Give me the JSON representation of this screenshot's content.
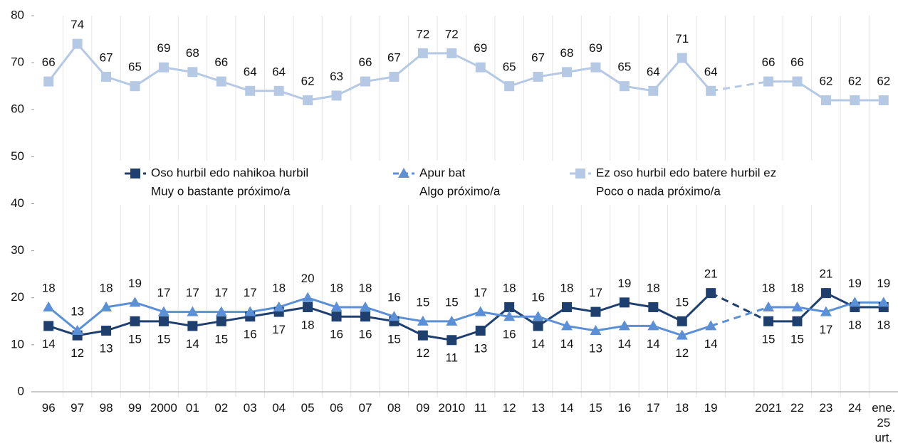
{
  "chart_data": {
    "type": "line",
    "categories": [
      "96",
      "97",
      "98",
      "99",
      "2000",
      "01",
      "02",
      "03",
      "04",
      "05",
      "06",
      "07",
      "08",
      "09",
      "2010",
      "11",
      "12",
      "13",
      "14",
      "15",
      "16",
      "17",
      "18",
      "19",
      null,
      "2021",
      "22",
      "23",
      "24",
      "ene.\n25\nurt."
    ],
    "series": [
      {
        "name": "Oso hurbil edo nahikoa hurbil",
        "subname": "Muy o bastante próximo/a",
        "color": "#1f3f6f",
        "marker": "square",
        "values": [
          14,
          12,
          13,
          15,
          15,
          14,
          15,
          16,
          17,
          18,
          16,
          16,
          15,
          12,
          11,
          13,
          18,
          14,
          18,
          17,
          19,
          18,
          15,
          21,
          null,
          15,
          15,
          21,
          18,
          18
        ]
      },
      {
        "name": "Apur bat",
        "subname": "Algo próximo/a",
        "color": "#5b8fd6",
        "marker": "triangle",
        "values": [
          18,
          13,
          18,
          19,
          17,
          17,
          17,
          17,
          18,
          20,
          18,
          18,
          16,
          15,
          15,
          17,
          16,
          16,
          14,
          13,
          14,
          14,
          12,
          14,
          null,
          18,
          18,
          17,
          19,
          19
        ]
      },
      {
        "name": "Ez oso hurbil edo batere hurbil ez",
        "subname": "Poco o nada próximo/a",
        "color": "#b5c9e5",
        "marker": "square",
        "values": [
          66,
          74,
          67,
          65,
          69,
          68,
          66,
          64,
          64,
          62,
          63,
          66,
          67,
          72,
          72,
          69,
          65,
          67,
          68,
          69,
          65,
          64,
          71,
          64,
          null,
          66,
          66,
          62,
          62,
          62
        ]
      }
    ],
    "ylim": [
      0,
      80
    ],
    "yticks": [
      0,
      10,
      20,
      30,
      40,
      50,
      60,
      70,
      80
    ],
    "legend": "center"
  }
}
